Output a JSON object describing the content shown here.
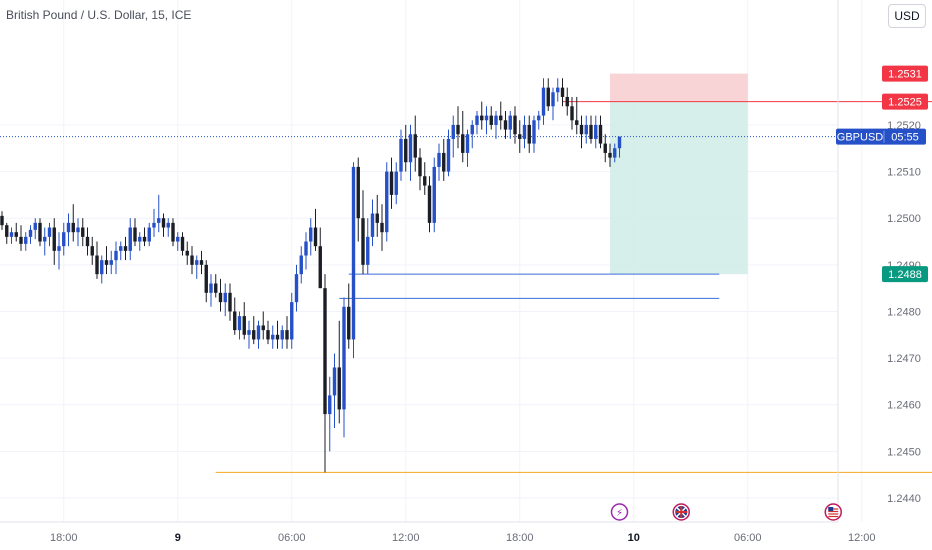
{
  "chart_data": {
    "type": "candlestick",
    "title": "British Pound / U.S. Dollar, 15, ICE",
    "currency_button": "USD",
    "symbol_tag": "GBPUSD",
    "countdown": "05:55",
    "ylim": [
      1.2437,
      1.2541
    ],
    "y_ticks": [
      1.244,
      1.245,
      1.246,
      1.247,
      1.248,
      1.249,
      1.25,
      1.251,
      1.252
    ],
    "x_ticks": [
      {
        "label": "18:00",
        "bar": 13,
        "bold": false
      },
      {
        "label": "9",
        "bar": 37,
        "bold": true
      },
      {
        "label": "06:00",
        "bar": 61,
        "bold": false
      },
      {
        "label": "12:00",
        "bar": 85,
        "bold": false
      },
      {
        "label": "18:00",
        "bar": 109,
        "bold": false
      },
      {
        "label": "10",
        "bar": 133,
        "bold": true
      },
      {
        "label": "06:00",
        "bar": 157,
        "bold": false
      },
      {
        "label": "12:00",
        "bar": 181,
        "bold": false
      }
    ],
    "current_price": 1.25175,
    "up_color": "#2650c8",
    "down_color": "#1c1e26",
    "price_labels": [
      {
        "price": 1.2531,
        "text": "1.2531",
        "color": "#f23645"
      },
      {
        "price": 1.2525,
        "text": "1.2525",
        "color": "#f23645"
      },
      {
        "price": 1.2488,
        "text": "1.2488",
        "color": "#089981"
      }
    ],
    "horizontal_lines": [
      {
        "price": 1.2525,
        "from_bar": 118,
        "to_bar": 200,
        "color": "#f23645"
      },
      {
        "price": 1.2488,
        "from_bar": 73,
        "to_bar": 151,
        "color": "#3d6ed8"
      },
      {
        "price": 1.24828,
        "from_bar": 71,
        "to_bar": 151,
        "color": "#3d6ed8"
      },
      {
        "price": 1.24455,
        "from_bar": 45,
        "to_bar": 200,
        "color": "#f5a623"
      }
    ],
    "position": {
      "from_bar": 128,
      "to_bar": 157,
      "stop": 1.2531,
      "entry": 1.2525,
      "target": 1.2488,
      "stop_color": "#f7cdd0",
      "target_color": "#cfece6"
    },
    "event_icons": [
      {
        "bar": 130,
        "symbol": "⚡",
        "kind": "lightning-icon"
      },
      {
        "bar": 143,
        "symbol": "UK",
        "kind": "uk-flag-icon"
      },
      {
        "bar": 175,
        "symbol": "US",
        "kind": "us-flag-icon"
      }
    ],
    "candles": [
      [
        1.25005,
        1.25015,
        1.24975,
        1.24985
      ],
      [
        1.24985,
        1.2499,
        1.24945,
        1.2496
      ],
      [
        1.2496,
        1.2498,
        1.24945,
        1.2497
      ],
      [
        1.2497,
        1.2499,
        1.2495,
        1.2496
      ],
      [
        1.2496,
        1.24985,
        1.2493,
        1.24945
      ],
      [
        1.24945,
        1.2497,
        1.2493,
        1.2496
      ],
      [
        1.2496,
        1.24985,
        1.24945,
        1.24975
      ],
      [
        1.24975,
        1.25,
        1.24955,
        1.2499
      ],
      [
        1.2499,
        1.25,
        1.2494,
        1.2495
      ],
      [
        1.2495,
        1.2498,
        1.2492,
        1.2496
      ],
      [
        1.2496,
        1.2499,
        1.2494,
        1.2498
      ],
      [
        1.2498,
        1.25,
        1.249,
        1.2493
      ],
      [
        1.2493,
        1.2497,
        1.2489,
        1.2494
      ],
      [
        1.2494,
        1.2499,
        1.2492,
        1.2497
      ],
      [
        1.2497,
        1.2501,
        1.2494,
        1.2499
      ],
      [
        1.2499,
        1.2503,
        1.2495,
        1.2497
      ],
      [
        1.2497,
        1.25,
        1.2494,
        1.2498
      ],
      [
        1.2498,
        1.25,
        1.2494,
        1.2496
      ],
      [
        1.2496,
        1.2498,
        1.2492,
        1.2494
      ],
      [
        1.2494,
        1.2496,
        1.249,
        1.2492
      ],
      [
        1.2492,
        1.2495,
        1.2487,
        1.2488
      ],
      [
        1.2488,
        1.2492,
        1.2486,
        1.2491
      ],
      [
        1.2491,
        1.2494,
        1.2488,
        1.249
      ],
      [
        1.249,
        1.2493,
        1.2488,
        1.2491
      ],
      [
        1.2491,
        1.2495,
        1.2488,
        1.2493
      ],
      [
        1.2493,
        1.2495,
        1.2491,
        1.2494
      ],
      [
        1.2494,
        1.2496,
        1.2491,
        1.2493
      ],
      [
        1.2493,
        1.25,
        1.2491,
        1.2498
      ],
      [
        1.2498,
        1.25,
        1.2494,
        1.2495
      ],
      [
        1.2495,
        1.2497,
        1.2493,
        1.2496
      ],
      [
        1.2496,
        1.2498,
        1.2494,
        1.2495
      ],
      [
        1.2495,
        1.2499,
        1.2494,
        1.2498
      ],
      [
        1.2498,
        1.2502,
        1.2496,
        1.2499
      ],
      [
        1.2499,
        1.2505,
        1.2497,
        1.25
      ],
      [
        1.25,
        1.2501,
        1.2496,
        1.2498
      ],
      [
        1.2498,
        1.25,
        1.2496,
        1.2499
      ],
      [
        1.2499,
        1.25,
        1.2494,
        1.2495
      ],
      [
        1.2495,
        1.2497,
        1.2493,
        1.2496
      ],
      [
        1.2496,
        1.2497,
        1.2492,
        1.2493
      ],
      [
        1.2493,
        1.2495,
        1.249,
        1.2492
      ],
      [
        1.2492,
        1.2494,
        1.2488,
        1.249
      ],
      [
        1.249,
        1.2492,
        1.2487,
        1.2491
      ],
      [
        1.2491,
        1.2493,
        1.2488,
        1.249
      ],
      [
        1.249,
        1.2491,
        1.2482,
        1.2484
      ],
      [
        1.2484,
        1.2488,
        1.2481,
        1.2486
      ],
      [
        1.2486,
        1.2488,
        1.2483,
        1.2484
      ],
      [
        1.2484,
        1.2487,
        1.248,
        1.2482
      ],
      [
        1.2482,
        1.2486,
        1.2479,
        1.2484
      ],
      [
        1.2484,
        1.2486,
        1.2478,
        1.248
      ],
      [
        1.248,
        1.2483,
        1.2475,
        1.2476
      ],
      [
        1.2476,
        1.248,
        1.2474,
        1.2479
      ],
      [
        1.2479,
        1.2482,
        1.2474,
        1.2475
      ],
      [
        1.2475,
        1.2478,
        1.2472,
        1.2476
      ],
      [
        1.2476,
        1.2479,
        1.2473,
        1.2474
      ],
      [
        1.2474,
        1.2478,
        1.2472,
        1.2477
      ],
      [
        1.2477,
        1.248,
        1.2474,
        1.2476
      ],
      [
        1.2476,
        1.2478,
        1.2473,
        1.2474
      ],
      [
        1.2474,
        1.2477,
        1.2472,
        1.2475
      ],
      [
        1.2475,
        1.2478,
        1.2472,
        1.2474
      ],
      [
        1.2474,
        1.2477,
        1.2472,
        1.2476
      ],
      [
        1.2476,
        1.2479,
        1.2472,
        1.2474
      ],
      [
        1.2474,
        1.2484,
        1.2472,
        1.2482
      ],
      [
        1.2482,
        1.249,
        1.248,
        1.2488
      ],
      [
        1.2488,
        1.2494,
        1.2486,
        1.2492
      ],
      [
        1.2492,
        1.2497,
        1.2489,
        1.2495
      ],
      [
        1.2495,
        1.25,
        1.2492,
        1.2498
      ],
      [
        1.2498,
        1.2502,
        1.2493,
        1.2494
      ],
      [
        1.2494,
        1.2498,
        1.2485,
        1.2485
      ],
      [
        1.2485,
        1.2488,
        1.24455,
        1.2458
      ],
      [
        1.2458,
        1.2466,
        1.245,
        1.2462
      ],
      [
        1.2462,
        1.2471,
        1.2455,
        1.2468
      ],
      [
        1.2468,
        1.2478,
        1.2456,
        1.2459
      ],
      [
        1.2459,
        1.2483,
        1.2453,
        1.2481
      ],
      [
        1.2481,
        1.2486,
        1.2472,
        1.2474
      ],
      [
        1.2474,
        1.2512,
        1.247,
        1.2511
      ],
      [
        1.2511,
        1.2513,
        1.2495,
        1.25
      ],
      [
        1.25,
        1.2506,
        1.2488,
        1.249
      ],
      [
        1.249,
        1.25,
        1.2488,
        1.2496
      ],
      [
        1.2496,
        1.2504,
        1.2494,
        1.2501
      ],
      [
        1.2501,
        1.2505,
        1.2496,
        1.2499
      ],
      [
        1.2499,
        1.2503,
        1.2493,
        1.2497
      ],
      [
        1.2497,
        1.2512,
        1.2495,
        1.251
      ],
      [
        1.251,
        1.2513,
        1.2502,
        1.2505
      ],
      [
        1.2505,
        1.2512,
        1.2503,
        1.251
      ],
      [
        1.251,
        1.2519,
        1.2508,
        1.2517
      ],
      [
        1.2517,
        1.252,
        1.251,
        1.2512
      ],
      [
        1.2512,
        1.252,
        1.2508,
        1.2518
      ],
      [
        1.2518,
        1.2522,
        1.251,
        1.2513
      ],
      [
        1.2513,
        1.2515,
        1.2506,
        1.2509
      ],
      [
        1.2509,
        1.2512,
        1.2505,
        1.2507
      ],
      [
        1.2507,
        1.2509,
        1.2497,
        1.2499
      ],
      [
        1.2499,
        1.2513,
        1.2497,
        1.2511
      ],
      [
        1.2511,
        1.2516,
        1.2508,
        1.2514
      ],
      [
        1.2514,
        1.2517,
        1.2508,
        1.251
      ],
      [
        1.251,
        1.2519,
        1.2509,
        1.2517
      ],
      [
        1.2517,
        1.2522,
        1.2513,
        1.252
      ],
      [
        1.252,
        1.2524,
        1.2515,
        1.2518
      ],
      [
        1.2518,
        1.2523,
        1.2512,
        1.2514
      ],
      [
        1.2514,
        1.2519,
        1.2511,
        1.2518
      ],
      [
        1.2518,
        1.2521,
        1.2515,
        1.252
      ],
      [
        1.252,
        1.2523,
        1.2518,
        1.2522
      ],
      [
        1.2522,
        1.2525,
        1.2519,
        1.2521
      ],
      [
        1.2521,
        1.2524,
        1.2518,
        1.2522
      ],
      [
        1.2522,
        1.2524,
        1.2519,
        1.252
      ],
      [
        1.252,
        1.2523,
        1.2517,
        1.2522
      ],
      [
        1.2522,
        1.2525,
        1.2519,
        1.2521
      ],
      [
        1.2521,
        1.2523,
        1.2517,
        1.2519
      ],
      [
        1.2519,
        1.2523,
        1.2517,
        1.2522
      ],
      [
        1.2522,
        1.2524,
        1.2516,
        1.2518
      ],
      [
        1.2518,
        1.2521,
        1.2514,
        1.2517
      ],
      [
        1.2517,
        1.2522,
        1.2515,
        1.252
      ],
      [
        1.252,
        1.2522,
        1.2514,
        1.2516
      ],
      [
        1.2516,
        1.2522,
        1.2514,
        1.2521
      ],
      [
        1.2521,
        1.2523,
        1.2519,
        1.2522
      ],
      [
        1.2522,
        1.253,
        1.252,
        1.2528
      ],
      [
        1.2528,
        1.253,
        1.2523,
        1.2524
      ],
      [
        1.2524,
        1.2528,
        1.2521,
        1.2527
      ],
      [
        1.2527,
        1.253,
        1.2525,
        1.2528
      ],
      [
        1.2528,
        1.253,
        1.2524,
        1.2526
      ],
      [
        1.2526,
        1.2528,
        1.2522,
        1.2524
      ],
      [
        1.2524,
        1.2526,
        1.2519,
        1.2521
      ],
      [
        1.2521,
        1.2526,
        1.2518,
        1.252
      ],
      [
        1.252,
        1.2522,
        1.2515,
        1.2518
      ],
      [
        1.2518,
        1.2522,
        1.2516,
        1.252
      ],
      [
        1.252,
        1.2522,
        1.2516,
        1.2517
      ],
      [
        1.2517,
        1.2522,
        1.2515,
        1.252
      ],
      [
        1.252,
        1.2522,
        1.2515,
        1.2516
      ],
      [
        1.2516,
        1.2518,
        1.2512,
        1.2514
      ],
      [
        1.2514,
        1.2516,
        1.2511,
        1.2513
      ],
      [
        1.2513,
        1.2516,
        1.2512,
        1.2515
      ],
      [
        1.2515,
        1.25175,
        1.2513,
        1.25175
      ]
    ]
  }
}
